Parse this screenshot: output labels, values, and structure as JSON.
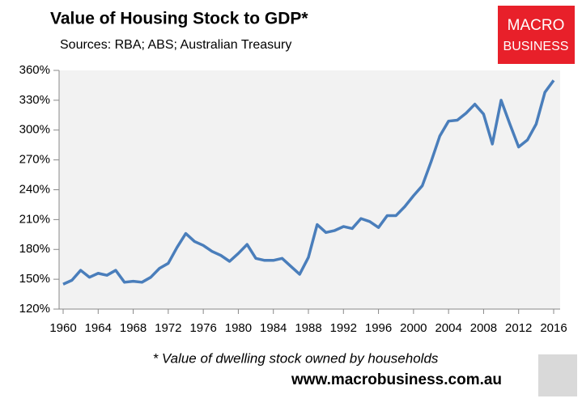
{
  "chart_data": {
    "type": "line",
    "title": "Value of Housing Stock to GDP*",
    "subtitle": "Sources: RBA; ABS; Australian Treasury",
    "x": [
      1960,
      1961,
      1962,
      1963,
      1964,
      1965,
      1966,
      1967,
      1968,
      1969,
      1970,
      1971,
      1972,
      1973,
      1974,
      1975,
      1976,
      1977,
      1978,
      1979,
      1980,
      1981,
      1982,
      1983,
      1984,
      1985,
      1986,
      1987,
      1988,
      1989,
      1990,
      1991,
      1992,
      1993,
      1994,
      1995,
      1996,
      1997,
      1998,
      1999,
      2000,
      2001,
      2002,
      2003,
      2004,
      2005,
      2006,
      2007,
      2008,
      2009,
      2010,
      2011,
      2012,
      2013,
      2014,
      2015,
      2016
    ],
    "values": [
      145,
      149,
      159,
      152,
      156,
      154,
      159,
      147,
      148,
      147,
      152,
      161,
      166,
      182,
      196,
      188,
      184,
      178,
      174,
      168,
      176,
      185,
      171,
      169,
      169,
      171,
      163,
      155,
      172,
      205,
      197,
      199,
      203,
      201,
      211,
      208,
      202,
      214,
      214,
      223,
      234,
      244,
      268,
      294,
      309,
      310,
      317,
      326,
      316,
      286,
      330,
      306,
      283,
      290,
      306,
      338,
      350
    ],
    "color": "#4a7ebb",
    "xlim": [
      1960,
      2016
    ],
    "xticks": [
      1960,
      1964,
      1968,
      1972,
      1976,
      1980,
      1984,
      1988,
      1992,
      1996,
      2000,
      2004,
      2008,
      2012,
      2016
    ],
    "ylim": [
      120,
      360
    ],
    "yticks": [
      {
        "value": 120,
        "label": "120%"
      },
      {
        "value": 150,
        "label": "150%"
      },
      {
        "value": 180,
        "label": "180%"
      },
      {
        "value": 210,
        "label": "210%"
      },
      {
        "value": 240,
        "label": "240%"
      },
      {
        "value": 270,
        "label": "270%"
      },
      {
        "value": 300,
        "label": "300%"
      },
      {
        "value": 330,
        "label": "330%"
      },
      {
        "value": 360,
        "label": "360%"
      }
    ],
    "grid": false,
    "annotations": [
      "* Value of dwelling stock owned by households",
      "www.macrobusiness.com.au"
    ]
  },
  "logo": [
    "MACRO",
    "BUSINESS"
  ]
}
